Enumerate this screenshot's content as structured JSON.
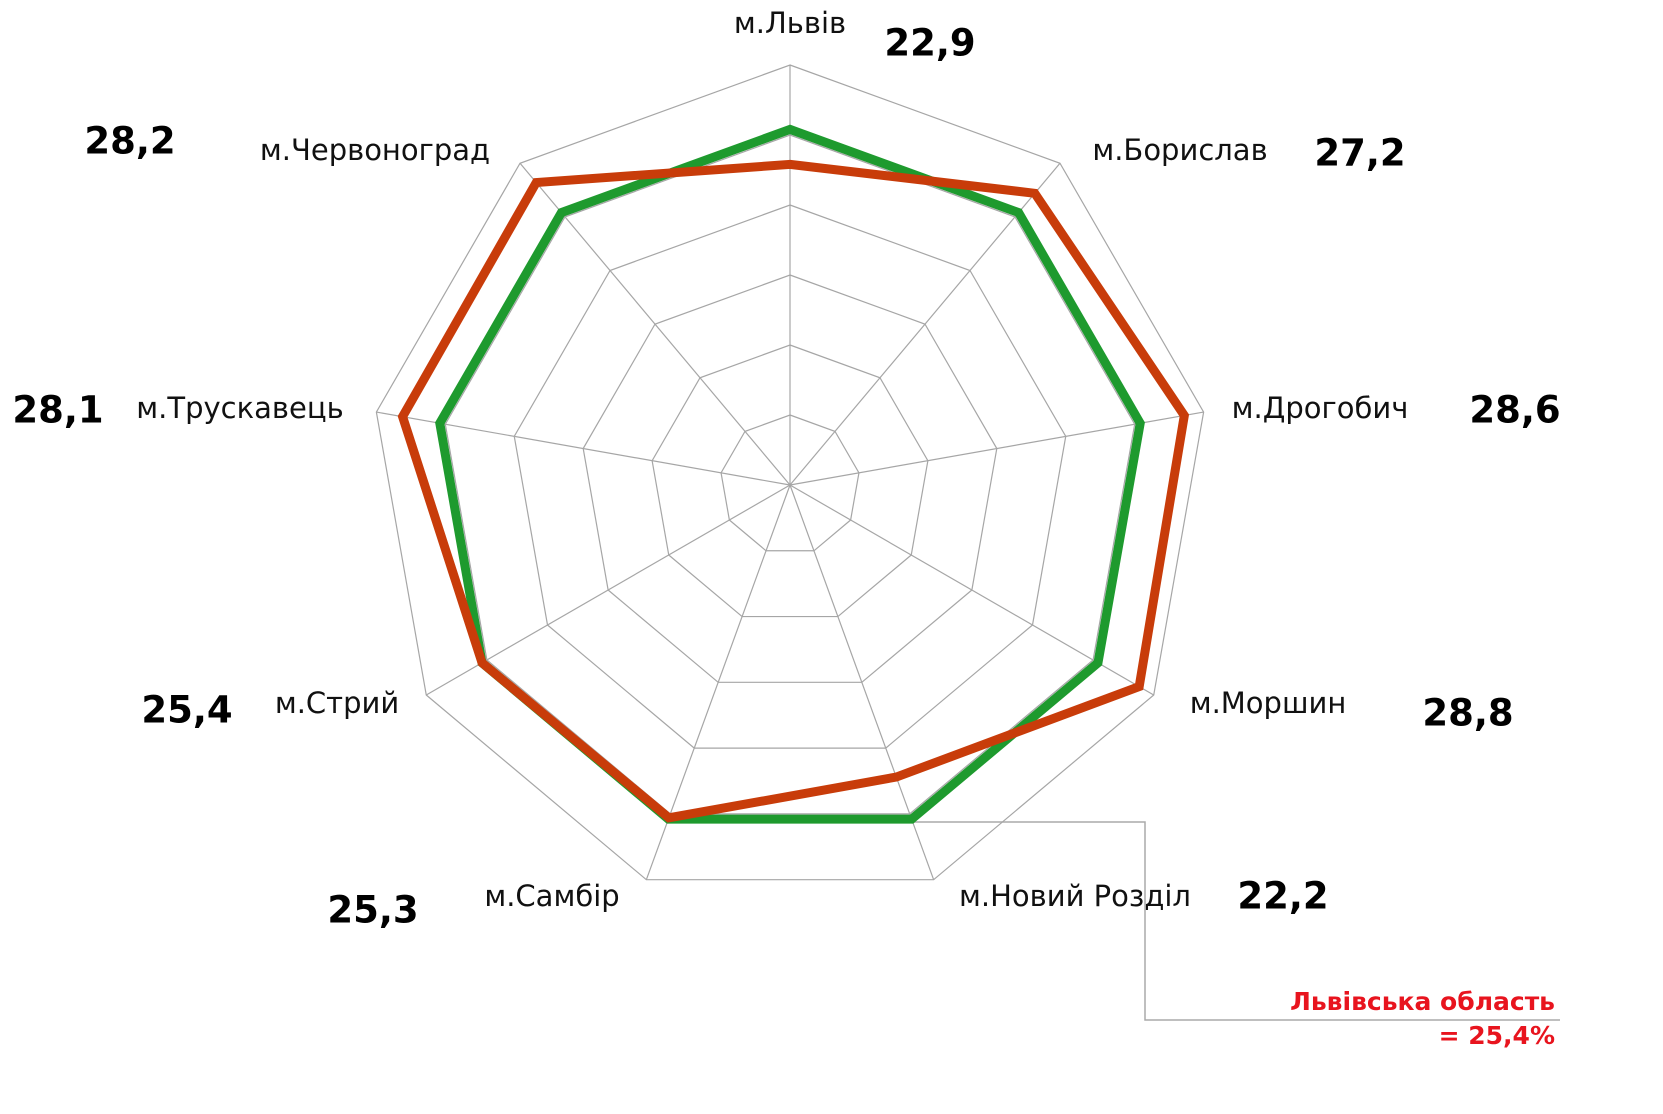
{
  "chart_data": {
    "type": "radar",
    "categories": [
      "м.Львів",
      "м.Борислав",
      "м.Дрогобич",
      "м.Моршин",
      "м.Новий Розділ",
      "м.Самбір",
      "м.Стрий",
      "м.Трускавець",
      "м.Червоноград"
    ],
    "series": [
      {
        "color": "#1e9a2e",
        "values": [
          25.4,
          25.4,
          25.4,
          25.4,
          25.4,
          25.4,
          25.4,
          25.4,
          25.4
        ]
      },
      {
        "color": "#c83c0a",
        "values": [
          22.9,
          27.2,
          28.6,
          28.8,
          22.2,
          25.3,
          25.4,
          28.1,
          28.2
        ],
        "value_labels": [
          "22,9",
          "27,2",
          "28,6",
          "28,8",
          "22,2",
          "25,3",
          "25,4",
          "28,1",
          "28,2"
        ]
      }
    ],
    "ylim": [
      0,
      30
    ],
    "yticks": [
      0,
      5,
      10,
      15,
      20,
      25,
      30
    ],
    "grid": true,
    "annotation": [
      "Львівська область",
      "= 25,4%"
    ]
  }
}
